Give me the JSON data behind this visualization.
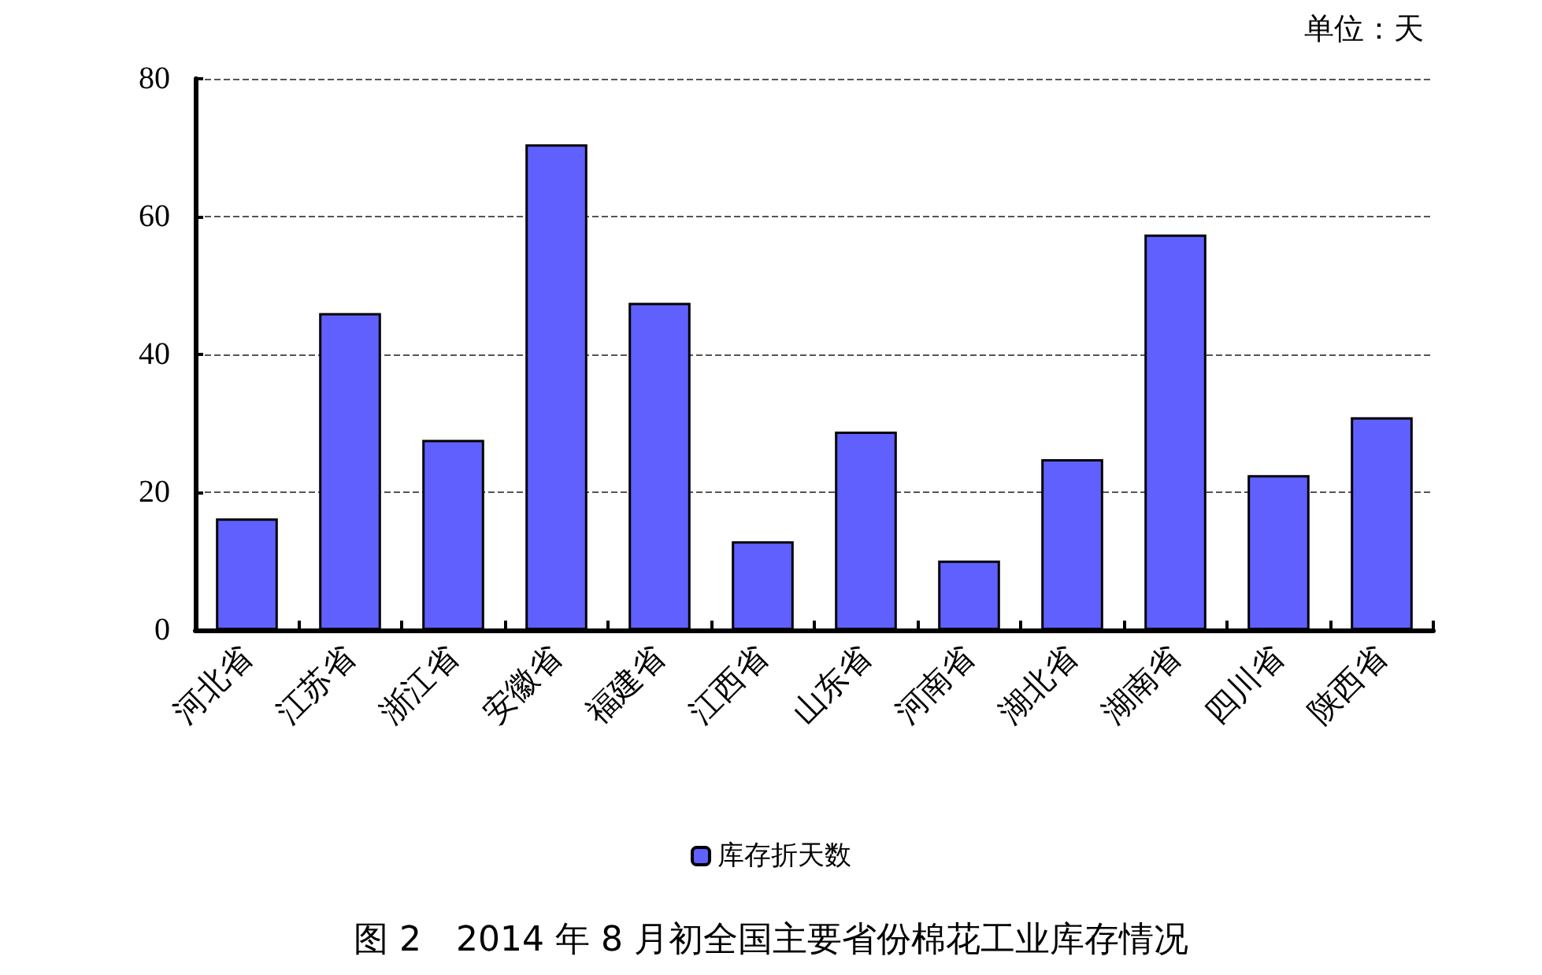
{
  "chart_data": {
    "type": "bar",
    "title": "图 2　2014 年 8 月初全国主要省份棉花工业库存情况",
    "ylabel": "单位：天",
    "categories": [
      "河北省",
      "江苏省",
      "浙江省",
      "安徽省",
      "福建省",
      "江西省",
      "山东省",
      "河南省",
      "湖北省",
      "湖南省",
      "四川省",
      "陕西省"
    ],
    "series": [
      {
        "name": "库存折天数",
        "color": "#6060ff",
        "values": [
          16.2,
          46.0,
          27.6,
          70.5,
          47.5,
          12.9,
          28.8,
          10.1,
          24.8,
          57.4,
          22.5,
          30.9
        ]
      }
    ],
    "ylim": [
      0,
      80
    ],
    "yticks": [
      0,
      20,
      40,
      60,
      80
    ],
    "grid": "y",
    "legend": "bottom"
  }
}
